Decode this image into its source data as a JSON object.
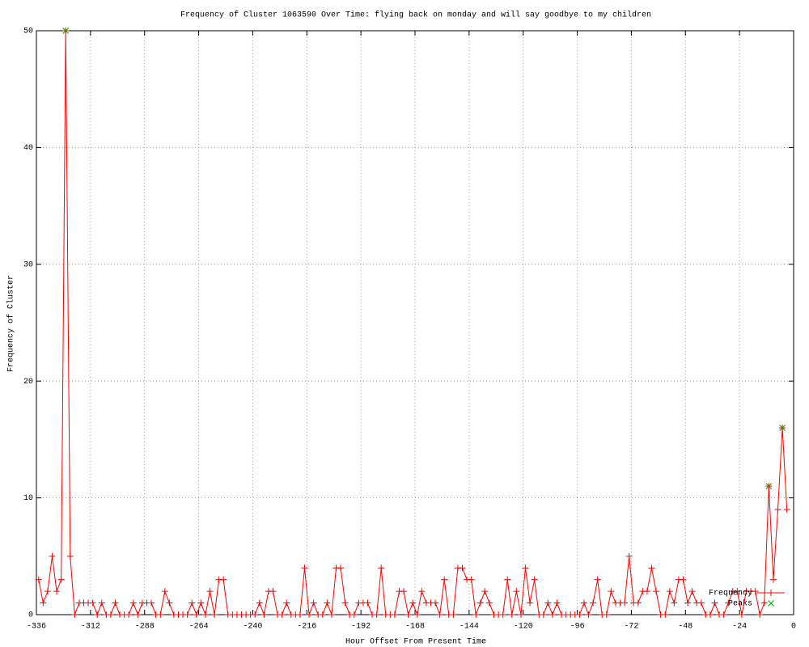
{
  "chart_data": {
    "type": "line",
    "title": "Frequency of Cluster 1063590 Over Time: flying back on monday and will say goodbye to my children",
    "x_label": "Hour Offset From Present Time",
    "y_label": "Frequency of Cluster",
    "xlim": [
      -336,
      0
    ],
    "ylim": [
      0,
      50
    ],
    "xticks": [
      -336,
      -312,
      -288,
      -264,
      -240,
      -216,
      -192,
      -168,
      -144,
      -120,
      -96,
      -72,
      -48,
      -24,
      0
    ],
    "yticks": [
      0,
      10,
      20,
      30,
      40,
      50
    ],
    "grid": true,
    "legend": "bottom-right",
    "series": [
      {
        "name": "Frequency",
        "color": "#ff0000",
        "marker": "+",
        "x": [
          -335,
          -333,
          -331,
          -329,
          -327,
          -325,
          -323,
          -321,
          -319,
          -317,
          -315,
          -313,
          -311,
          -309,
          -307,
          -305,
          -303,
          -301,
          -299,
          -297,
          -295,
          -293,
          -291,
          -289,
          -287,
          -285,
          -283,
          -281,
          -279,
          -277,
          -275,
          -273,
          -271,
          -269,
          -267,
          -265,
          -263,
          -261,
          -259,
          -257,
          -255,
          -253,
          -251,
          -249,
          -247,
          -245,
          -243,
          -241,
          -239,
          -237,
          -235,
          -233,
          -231,
          -229,
          -227,
          -225,
          -223,
          -221,
          -219,
          -217,
          -215,
          -213,
          -211,
          -209,
          -207,
          -205,
          -203,
          -201,
          -199,
          -197,
          -195,
          -193,
          -191,
          -189,
          -187,
          -185,
          -183,
          -181,
          -179,
          -177,
          -175,
          -173,
          -171,
          -169,
          -167,
          -165,
          -163,
          -161,
          -159,
          -157,
          -155,
          -153,
          -151,
          -149,
          -147,
          -145,
          -143,
          -141,
          -139,
          -137,
          -135,
          -133,
          -131,
          -129,
          -127,
          -125,
          -123,
          -121,
          -119,
          -117,
          -115,
          -113,
          -111,
          -109,
          -107,
          -105,
          -103,
          -101,
          -99,
          -97,
          -95,
          -93,
          -91,
          -89,
          -87,
          -85,
          -83,
          -81,
          -79,
          -77,
          -75,
          -73,
          -71,
          -69,
          -67,
          -65,
          -63,
          -61,
          -59,
          -57,
          -55,
          -53,
          -51,
          -49,
          -47,
          -45,
          -43,
          -41,
          -39,
          -37,
          -35,
          -33,
          -31,
          -29,
          -27,
          -25,
          -23,
          -21,
          -19,
          -17,
          -15,
          -13,
          -11,
          -9,
          -7,
          -5,
          -3
        ],
        "values": [
          3,
          1,
          2,
          5,
          2,
          3,
          50,
          5,
          0,
          1,
          1,
          1,
          1,
          0,
          1,
          0,
          0,
          1,
          0,
          0,
          0,
          1,
          0,
          1,
          1,
          1,
          0,
          0,
          2,
          1,
          0,
          0,
          0,
          0,
          1,
          0,
          1,
          0,
          2,
          0,
          3,
          3,
          0,
          0,
          0,
          0,
          0,
          0,
          0,
          1,
          0,
          2,
          2,
          0,
          0,
          1,
          0,
          0,
          0,
          4,
          0,
          1,
          0,
          0,
          1,
          0,
          4,
          4,
          1,
          0,
          0,
          1,
          1,
          1,
          0,
          0,
          4,
          0,
          0,
          0,
          2,
          2,
          0,
          1,
          0,
          2,
          1,
          1,
          1,
          0,
          3,
          0,
          0,
          4,
          4,
          3,
          3,
          0,
          1,
          2,
          1,
          0,
          0,
          0,
          3,
          0,
          2,
          0,
          4,
          1,
          3,
          0,
          0,
          1,
          0,
          1,
          0,
          0,
          0,
          0,
          0,
          1,
          0,
          1,
          3,
          0,
          0,
          2,
          1,
          1,
          1,
          5,
          1,
          1,
          2,
          2,
          4,
          2,
          0,
          0,
          2,
          1,
          3,
          3,
          1,
          2,
          1,
          1,
          0,
          0,
          1,
          0,
          0,
          1,
          2,
          2,
          0,
          2,
          2,
          2,
          0,
          1,
          11,
          3,
          9,
          16,
          9
        ]
      },
      {
        "name": "Peaks",
        "color": "#00a000",
        "marker": "x",
        "x": [
          -323,
          -11,
          -5
        ],
        "values": [
          50,
          11,
          16
        ]
      }
    ]
  }
}
